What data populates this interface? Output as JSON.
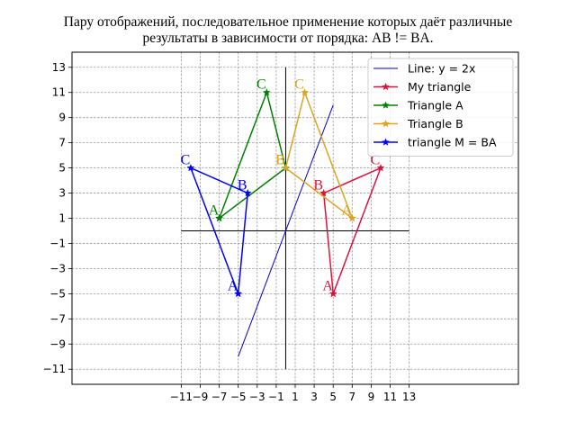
{
  "title_line1": "Пару отображений, последовательное применение которых даёт различные",
  "title_line2": "результаты в зависимости от порядка: AB != BA.",
  "chart_data": {
    "type": "line",
    "xlim": [
      -22.5,
      24.5
    ],
    "ylim": [
      -12.2,
      14.2
    ],
    "x_ticks": [
      -11,
      -9,
      -7,
      -5,
      -3,
      -1,
      1,
      3,
      5,
      7,
      9,
      11,
      13
    ],
    "x_tick_labels": [
      "−11",
      "−9",
      "−7",
      "−5",
      "−3",
      "−1",
      "1",
      "3",
      "5",
      "7",
      "9",
      "11",
      "13"
    ],
    "y_ticks": [
      -11,
      -9,
      -7,
      -5,
      -3,
      -1,
      1,
      3,
      5,
      7,
      9,
      11,
      13
    ],
    "y_tick_labels": [
      "−11",
      "−9",
      "−7",
      "−5",
      "−3",
      "−1",
      "1",
      "3",
      "5",
      "7",
      "9",
      "11",
      "13"
    ],
    "grid": true,
    "grid_style": "dashed",
    "legend_position": "top-right",
    "axes_lines": {
      "horizontal": {
        "y": 0,
        "x_from": -11,
        "x_to": 13
      },
      "vertical": {
        "x": 0,
        "y_from": -11,
        "y_to": 13
      }
    },
    "series": [
      {
        "name": "Line: y = 2x",
        "color": "#0000cd",
        "marker": "none",
        "width": 1,
        "x": [
          -5,
          5
        ],
        "y": [
          -10,
          10
        ],
        "points": []
      },
      {
        "name": "My triangle",
        "color": "#dc143c",
        "marker": "star",
        "width": 1.5,
        "x": [
          5,
          4,
          10,
          5
        ],
        "y": [
          -5,
          3,
          5,
          -5
        ],
        "points": [
          {
            "label": "A",
            "x": 5,
            "y": -5
          },
          {
            "label": "B",
            "x": 4,
            "y": 3
          },
          {
            "label": "C",
            "x": 10,
            "y": 5
          }
        ]
      },
      {
        "name": "Triangle A",
        "color": "#008000",
        "marker": "star",
        "width": 1.5,
        "x": [
          -7,
          0,
          -2,
          -7
        ],
        "y": [
          1,
          5,
          11,
          1
        ],
        "points": [
          {
            "label": "A",
            "x": -7,
            "y": 1
          },
          {
            "label": "B",
            "x": 0,
            "y": 5
          },
          {
            "label": "C",
            "x": -2,
            "y": 11
          }
        ]
      },
      {
        "name": "Triangle B",
        "color": "#daa520",
        "marker": "star",
        "width": 1.5,
        "x": [
          7,
          0,
          2,
          7
        ],
        "y": [
          1,
          5,
          11,
          1
        ],
        "points": [
          {
            "label": "A",
            "x": 7,
            "y": 1
          },
          {
            "label": "B",
            "x": 0,
            "y": 5
          },
          {
            "label": "C",
            "x": 2,
            "y": 11
          }
        ]
      },
      {
        "name": "triangle M = BA",
        "color": "#0000ff",
        "marker": "star",
        "width": 1.5,
        "x": [
          -5,
          -4,
          -10,
          -5
        ],
        "y": [
          -5,
          3,
          5,
          -5
        ],
        "points": [
          {
            "label": "A",
            "x": -5,
            "y": -5
          },
          {
            "label": "B",
            "x": -4,
            "y": 3
          },
          {
            "label": "C",
            "x": -10,
            "y": 5
          }
        ]
      }
    ]
  }
}
